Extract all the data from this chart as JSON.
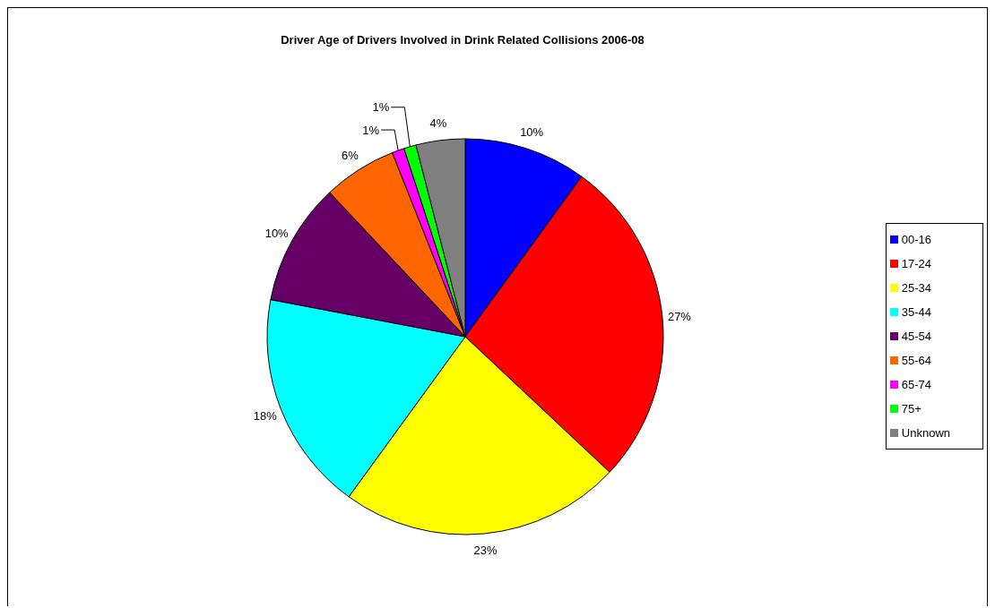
{
  "chart_data": {
    "type": "pie",
    "title": "Driver Age of Drivers Involved in Drink Related Collisions 2006-08",
    "categories": [
      "00-16",
      "17-24",
      "25-34",
      "35-44",
      "45-54",
      "55-64",
      "65-74",
      "75+",
      "Unknown"
    ],
    "values": [
      10,
      27,
      23,
      18,
      10,
      6,
      1,
      1,
      4
    ],
    "colors": [
      "#0000ff",
      "#ff0000",
      "#ffff00",
      "#00ffff",
      "#660066",
      "#ff6600",
      "#ff00ff",
      "#00ff00",
      "#808080"
    ],
    "value_labels": [
      "10%",
      "27%",
      "23%",
      "18%",
      "10%",
      "6%",
      "1%",
      "1%",
      "4%"
    ],
    "legend": "right"
  }
}
